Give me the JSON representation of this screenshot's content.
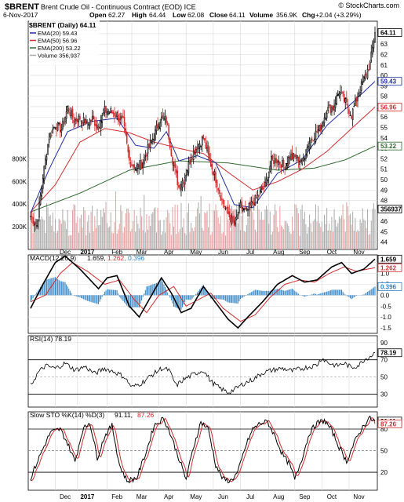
{
  "header": {
    "symbol": "$BRENT",
    "description": "Brent Crude Oil - Continuous Contract (EOD) ICE",
    "brand": "© StockCharts.com",
    "date": "6-Nov-2017",
    "open_label": "Open",
    "open": "62.27",
    "high_label": "High",
    "high": "64.44",
    "low_label": "Low",
    "low": "62.08",
    "close_label": "Close",
    "close": "64.11",
    "volume_label": "Volume",
    "volume": "356.9K",
    "chg_label": "Chg",
    "chg": "+2.04 (+3.29%)"
  },
  "colors": {
    "up": "#000000",
    "down": "#d22d2d",
    "ema20": "#1f2ea0",
    "ema50": "#d22d2d",
    "ema200": "#2f6a2f",
    "volume_up": "#aaaaaa",
    "volume_down": "#e8a0a0",
    "macd_line": "#000000",
    "signal_line": "#d22d2d",
    "histogram": "#2f82c4",
    "rsi_line": "#000000",
    "stoch_k": "#000000",
    "stoch_d": "#d22d2d",
    "grid": "#dddddd"
  },
  "chart_data": [
    {
      "type": "candlestick",
      "panel": "price",
      "title": "$BRENT (Daily) 64.11",
      "legend": [
        {
          "name": "EMA(20) 59.43",
          "color": "#1f2ea0"
        },
        {
          "name": "EMA(50) 56.96",
          "color": "#d22d2d"
        },
        {
          "name": "EMA(200) 53.22",
          "color": "#2f6a2f"
        },
        {
          "name": "Volume 356,937",
          "color": "#aaaaaa"
        }
      ],
      "x_labels": [
        "Dec",
        "2017",
        "Feb",
        "Mar",
        "Apr",
        "May",
        "Jun",
        "Jul",
        "Aug",
        "Sep",
        "Oct",
        "Nov"
      ],
      "x_label_positions": [
        0.07,
        0.16,
        0.27,
        0.37,
        0.47,
        0.58,
        0.68,
        0.78,
        0.87,
        0.95,
        1.06,
        1.15
      ],
      "y_ticks": [
        44,
        45,
        46,
        47,
        48,
        49,
        50,
        51,
        52,
        53,
        54,
        55,
        56,
        57,
        58,
        59,
        60,
        61,
        62,
        63,
        64
      ],
      "ylim": [
        43.3,
        65.2
      ],
      "value_boxes": [
        {
          "label": "64.11",
          "value": 64.11,
          "color": "#000000"
        },
        {
          "label": "59.43",
          "value": 59.43,
          "color": "#1f2ea0"
        },
        {
          "label": "56.96",
          "value": 56.96,
          "color": "#d22d2d"
        },
        {
          "label": "53.22",
          "value": 53.22,
          "color": "#2f6a2f"
        }
      ],
      "close_anchors": [
        [
          0,
          46.5
        ],
        [
          5,
          45.6
        ],
        [
          10,
          50.3
        ],
        [
          15,
          54.1
        ],
        [
          20,
          55.3
        ],
        [
          25,
          54.8
        ],
        [
          30,
          56.9
        ],
        [
          35,
          55.7
        ],
        [
          40,
          55.9
        ],
        [
          45,
          55.4
        ],
        [
          50,
          55.8
        ],
        [
          55,
          55.1
        ],
        [
          60,
          56.6
        ],
        [
          65,
          56.5
        ],
        [
          70,
          56.2
        ],
        [
          75,
          55.5
        ],
        [
          80,
          51.8
        ],
        [
          85,
          51.1
        ],
        [
          90,
          51.5
        ],
        [
          95,
          52.9
        ],
        [
          100,
          54.2
        ],
        [
          105,
          55.8
        ],
        [
          110,
          55.7
        ],
        [
          115,
          51.9
        ],
        [
          120,
          49.3
        ],
        [
          125,
          50.3
        ],
        [
          130,
          52.2
        ],
        [
          135,
          53.2
        ],
        [
          140,
          54.0
        ],
        [
          145,
          51.8
        ],
        [
          150,
          50.1
        ],
        [
          155,
          48.0
        ],
        [
          160,
          46.7
        ],
        [
          165,
          45.6
        ],
        [
          170,
          47.4
        ],
        [
          175,
          46.9
        ],
        [
          180,
          47.8
        ],
        [
          185,
          48.5
        ],
        [
          190,
          49.4
        ],
        [
          195,
          51.8
        ],
        [
          200,
          51.9
        ],
        [
          205,
          51.3
        ],
        [
          210,
          52.2
        ],
        [
          215,
          52.1
        ],
        [
          220,
          51.7
        ],
        [
          225,
          53.4
        ],
        [
          230,
          54.3
        ],
        [
          235,
          55.0
        ],
        [
          240,
          56.7
        ],
        [
          245,
          56.9
        ],
        [
          250,
          58.5
        ],
        [
          255,
          57.4
        ],
        [
          260,
          56.2
        ],
        [
          265,
          58.1
        ],
        [
          270,
          59.6
        ],
        [
          275,
          61.1
        ],
        [
          279,
          64.11
        ]
      ],
      "ema20_anchors": [
        [
          0,
          46.8
        ],
        [
          15,
          51.0
        ],
        [
          30,
          54.6
        ],
        [
          50,
          55.6
        ],
        [
          70,
          55.9
        ],
        [
          85,
          53.3
        ],
        [
          100,
          53.0
        ],
        [
          110,
          54.6
        ],
        [
          120,
          51.8
        ],
        [
          135,
          52.3
        ],
        [
          150,
          51.6
        ],
        [
          165,
          47.6
        ],
        [
          180,
          47.3
        ],
        [
          200,
          50.6
        ],
        [
          220,
          51.9
        ],
        [
          240,
          55.2
        ],
        [
          260,
          57.3
        ],
        [
          279,
          59.43
        ]
      ],
      "ema50_anchors": [
        [
          0,
          46.9
        ],
        [
          20,
          49.5
        ],
        [
          40,
          53.6
        ],
        [
          60,
          54.9
        ],
        [
          80,
          54.5
        ],
        [
          100,
          53.6
        ],
        [
          120,
          53.0
        ],
        [
          140,
          52.5
        ],
        [
          160,
          50.7
        ],
        [
          180,
          49.0
        ],
        [
          200,
          49.8
        ],
        [
          220,
          51.0
        ],
        [
          240,
          52.7
        ],
        [
          260,
          54.9
        ],
        [
          279,
          56.96
        ]
      ],
      "ema200_anchors": [
        [
          0,
          46.9
        ],
        [
          40,
          48.7
        ],
        [
          80,
          50.9
        ],
        [
          120,
          51.8
        ],
        [
          160,
          51.6
        ],
        [
          200,
          50.9
        ],
        [
          230,
          51.1
        ],
        [
          255,
          51.9
        ],
        [
          279,
          53.22
        ]
      ],
      "n_bars": 280
    },
    {
      "type": "bar",
      "panel": "volume",
      "y_ticks_labels": [
        "200K",
        "400K",
        "600K",
        "800K"
      ],
      "y_ticks": [
        200,
        400,
        600,
        800
      ],
      "ylim": [
        0,
        900
      ],
      "last_value_label": "356937",
      "last_value": 357,
      "typical_range": [
        120,
        420
      ]
    },
    {
      "type": "line",
      "panel": "macd",
      "title": "MACD(12,26,9) 1.659, 1.262, 0.396",
      "title_parts": [
        "MACD(12,26,9) ",
        "1.659, ",
        "1.262, ",
        "0.396"
      ],
      "y_ticks": [
        1.5,
        1.0,
        0.5,
        0.0,
        -0.5,
        -1.0,
        -1.5
      ],
      "y_tick_labels": [
        "1.5",
        "1.0",
        "0.5",
        "0.0",
        "-0.5",
        "-1.0",
        "-1.5"
      ],
      "ylim": [
        -1.75,
        1.85
      ],
      "value_boxes": [
        {
          "label": "1.659",
          "value": 1.659,
          "color": "#000000"
        },
        {
          "label": "1.262",
          "value": 1.262,
          "color": "#d22d2d"
        },
        {
          "label": "0.396",
          "value": 0.396,
          "color": "#2f82c4"
        }
      ],
      "macd_anchors": [
        [
          0,
          -0.6
        ],
        [
          10,
          0.5
        ],
        [
          20,
          1.5
        ],
        [
          28,
          1.8
        ],
        [
          40,
          1.2
        ],
        [
          55,
          0.3
        ],
        [
          62,
          0.8
        ],
        [
          70,
          0.9
        ],
        [
          80,
          -0.5
        ],
        [
          88,
          -1.0
        ],
        [
          96,
          -0.2
        ],
        [
          106,
          0.8
        ],
        [
          114,
          0.1
        ],
        [
          122,
          -0.8
        ],
        [
          130,
          -0.6
        ],
        [
          140,
          0.4
        ],
        [
          148,
          -0.2
        ],
        [
          160,
          -1.1
        ],
        [
          168,
          -1.5
        ],
        [
          176,
          -1.0
        ],
        [
          188,
          -0.3
        ],
        [
          200,
          0.5
        ],
        [
          212,
          0.9
        ],
        [
          222,
          0.6
        ],
        [
          232,
          0.7
        ],
        [
          244,
          1.3
        ],
        [
          252,
          1.5
        ],
        [
          260,
          1.0
        ],
        [
          270,
          1.2
        ],
        [
          279,
          1.659
        ]
      ],
      "signal_anchors": [
        [
          0,
          -0.3
        ],
        [
          12,
          0.0
        ],
        [
          24,
          1.0
        ],
        [
          34,
          1.5
        ],
        [
          46,
          1.1
        ],
        [
          60,
          0.5
        ],
        [
          72,
          0.7
        ],
        [
          84,
          -0.2
        ],
        [
          94,
          -0.8
        ],
        [
          104,
          0.0
        ],
        [
          116,
          0.4
        ],
        [
          126,
          -0.5
        ],
        [
          136,
          -0.2
        ],
        [
          146,
          0.1
        ],
        [
          156,
          -0.6
        ],
        [
          170,
          -1.2
        ],
        [
          182,
          -0.9
        ],
        [
          194,
          -0.1
        ],
        [
          206,
          0.5
        ],
        [
          218,
          0.7
        ],
        [
          230,
          0.6
        ],
        [
          242,
          1.0
        ],
        [
          254,
          1.3
        ],
        [
          264,
          1.1
        ],
        [
          279,
          1.262
        ]
      ]
    },
    {
      "type": "line",
      "panel": "rsi",
      "title": "RSI(14) 78.19",
      "y_ticks": [
        90,
        70,
        50,
        30
      ],
      "y_tick_labels": [
        "90",
        "70",
        "50",
        "30"
      ],
      "overbought": 70,
      "oversold": 30,
      "midline": 50,
      "ylim": [
        15,
        98
      ],
      "value_boxes": [
        {
          "label": "78.19",
          "value": 78.19,
          "color": "#000000"
        }
      ],
      "rsi_anchors": [
        [
          0,
          40
        ],
        [
          6,
          55
        ],
        [
          12,
          63
        ],
        [
          20,
          60
        ],
        [
          28,
          66
        ],
        [
          36,
          58
        ],
        [
          44,
          62
        ],
        [
          52,
          54
        ],
        [
          60,
          60
        ],
        [
          68,
          56
        ],
        [
          76,
          50
        ],
        [
          82,
          38
        ],
        [
          90,
          43
        ],
        [
          98,
          52
        ],
        [
          106,
          60
        ],
        [
          112,
          58
        ],
        [
          118,
          40
        ],
        [
          124,
          47
        ],
        [
          132,
          53
        ],
        [
          140,
          58
        ],
        [
          146,
          45
        ],
        [
          152,
          38
        ],
        [
          160,
          32
        ],
        [
          166,
          36
        ],
        [
          172,
          42
        ],
        [
          180,
          47
        ],
        [
          188,
          55
        ],
        [
          196,
          58
        ],
        [
          204,
          60
        ],
        [
          212,
          57
        ],
        [
          220,
          60
        ],
        [
          226,
          62
        ],
        [
          232,
          64
        ],
        [
          236,
          72
        ],
        [
          242,
          66
        ],
        [
          248,
          63
        ],
        [
          254,
          66
        ],
        [
          260,
          61
        ],
        [
          266,
          64
        ],
        [
          270,
          70
        ],
        [
          275,
          74
        ],
        [
          279,
          78.19
        ]
      ]
    },
    {
      "type": "line",
      "panel": "stochastic",
      "title": "Slow STO %K(14) %D(3) 91.11, 87.26",
      "title_parts": [
        "Slow STO %K(14) %D(3) ",
        "91.11, ",
        "87.26"
      ],
      "y_ticks": [
        80,
        50,
        20
      ],
      "y_tick_labels": [
        "80",
        "50",
        "20"
      ],
      "overbought": 80,
      "oversold": 20,
      "midline": 50,
      "ylim": [
        -5,
        104
      ],
      "value_boxes": [
        {
          "label": "91.11",
          "value": 91.11,
          "color": "#000000"
        },
        {
          "label": "87.26",
          "value": 87.26,
          "color": "#d22d2d"
        }
      ],
      "k_anchors": [
        [
          0,
          12
        ],
        [
          8,
          45
        ],
        [
          16,
          75
        ],
        [
          24,
          80
        ],
        [
          30,
          60
        ],
        [
          36,
          35
        ],
        [
          42,
          78
        ],
        [
          48,
          90
        ],
        [
          54,
          40
        ],
        [
          60,
          70
        ],
        [
          66,
          85
        ],
        [
          72,
          30
        ],
        [
          78,
          8
        ],
        [
          86,
          12
        ],
        [
          94,
          50
        ],
        [
          100,
          85
        ],
        [
          108,
          95
        ],
        [
          114,
          70
        ],
        [
          120,
          40
        ],
        [
          126,
          10
        ],
        [
          132,
          55
        ],
        [
          138,
          90
        ],
        [
          144,
          80
        ],
        [
          150,
          30
        ],
        [
          156,
          10
        ],
        [
          162,
          8
        ],
        [
          168,
          20
        ],
        [
          174,
          55
        ],
        [
          180,
          80
        ],
        [
          186,
          88
        ],
        [
          192,
          90
        ],
        [
          198,
          70
        ],
        [
          204,
          45
        ],
        [
          210,
          30
        ],
        [
          214,
          10
        ],
        [
          220,
          40
        ],
        [
          226,
          75
        ],
        [
          232,
          88
        ],
        [
          238,
          92
        ],
        [
          244,
          78
        ],
        [
          250,
          55
        ],
        [
          256,
          35
        ],
        [
          262,
          60
        ],
        [
          268,
          80
        ],
        [
          274,
          95
        ],
        [
          279,
          91.11
        ]
      ],
      "d_lag": 3
    }
  ]
}
